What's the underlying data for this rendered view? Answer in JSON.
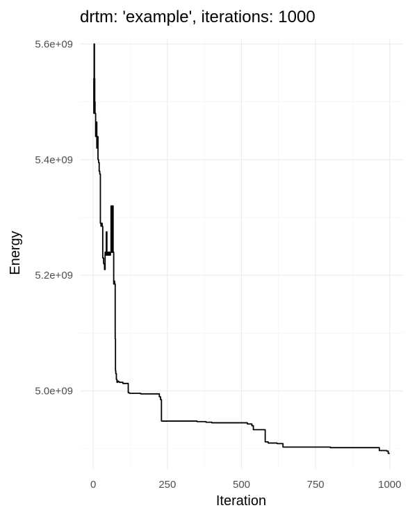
{
  "chart_data": {
    "type": "line",
    "title": "drtm: 'example', iterations: 1000",
    "xlabel": "Iteration",
    "ylabel": "Energy",
    "xlim": [
      -45,
      1045
    ],
    "ylim": [
      4865000000,
      5610000000
    ],
    "x_ticks": [
      0,
      250,
      500,
      750,
      1000
    ],
    "x_tick_labels": [
      "0",
      "250",
      "500",
      "750",
      "1000"
    ],
    "y_ticks": [
      5000000000,
      5200000000,
      5400000000,
      5600000000
    ],
    "y_tick_labels": [
      "5.0e+09",
      "5.2e+09",
      "5.4e+09",
      "5.6e+09"
    ],
    "grid": true,
    "series": [
      {
        "x": [
          1,
          2,
          3,
          4,
          5,
          6,
          8,
          10,
          12,
          14,
          16,
          18,
          20,
          22,
          24,
          26,
          28,
          30,
          32,
          35,
          38,
          40,
          42,
          44,
          46,
          47,
          49,
          52,
          55,
          58,
          60,
          62,
          63,
          64,
          65,
          67,
          69,
          70,
          72,
          74,
          75,
          76,
          78,
          80,
          82,
          85,
          88,
          95,
          100,
          110,
          118,
          122,
          130,
          140,
          160,
          180,
          200,
          220,
          223,
          227,
          230,
          250,
          300,
          350,
          380,
          400,
          450,
          500,
          520,
          530,
          535,
          540,
          560,
          575,
          580,
          590,
          600,
          620,
          640,
          650,
          700,
          800,
          900,
          960,
          965,
          970,
          980,
          990,
          995,
          1000
        ],
        "y": [
          5480000000,
          5540000000,
          5600000000,
          5540000000,
          5500000000,
          5480000000,
          5440000000,
          5465000000,
          5420000000,
          5440000000,
          5400000000,
          5395000000,
          5380000000,
          5375000000,
          5290000000,
          5285000000,
          5290000000,
          5285000000,
          5230000000,
          5220000000,
          5210000000,
          5240000000,
          5235000000,
          5275000000,
          5235000000,
          5240000000,
          5235000000,
          5240000000,
          5235000000,
          5240000000,
          5320000000,
          5240000000,
          5320000000,
          5240000000,
          5320000000,
          5240000000,
          5185000000,
          5190000000,
          5185000000,
          5090000000,
          5035000000,
          5030000000,
          5020000000,
          5015000000,
          5017000000,
          5016000000,
          5015000000,
          5015000000,
          5013000000,
          5013000000,
          4997000000,
          4996000000,
          4996000000,
          4996000000,
          4995000000,
          4995000000,
          4995000000,
          4995000000,
          4990000000,
          4985000000,
          4948000000,
          4948000000,
          4948000000,
          4947000000,
          4946000000,
          4945000000,
          4945000000,
          4945000000,
          4943000000,
          4943000000,
          4940000000,
          4933000000,
          4933000000,
          4933000000,
          4912000000,
          4910000000,
          4910000000,
          4909000000,
          4903000000,
          4903000000,
          4903000000,
          4902000000,
          4902000000,
          4902000000,
          4897000000,
          4897000000,
          4897000000,
          4896000000,
          4892000000,
          4892000000
        ]
      }
    ]
  }
}
